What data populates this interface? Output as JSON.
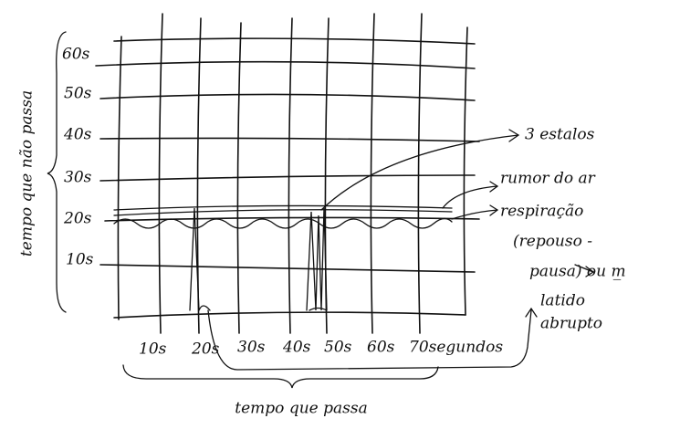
{
  "diagram": {
    "y_axis_title": "tempo que não passa",
    "x_axis_title": "tempo que passa",
    "y_labels": [
      "60s",
      "50s",
      "40s",
      "30s",
      "20s",
      "10s"
    ],
    "x_labels": [
      "10s",
      "20s",
      "30s",
      "40s",
      "50s",
      "60s",
      "70segundos"
    ],
    "annotations": [
      "3 estalos",
      "rumor do ar",
      "respiração",
      "(repouso -",
      "pausa) ou m̲",
      "latido",
      "abrupto"
    ]
  }
}
